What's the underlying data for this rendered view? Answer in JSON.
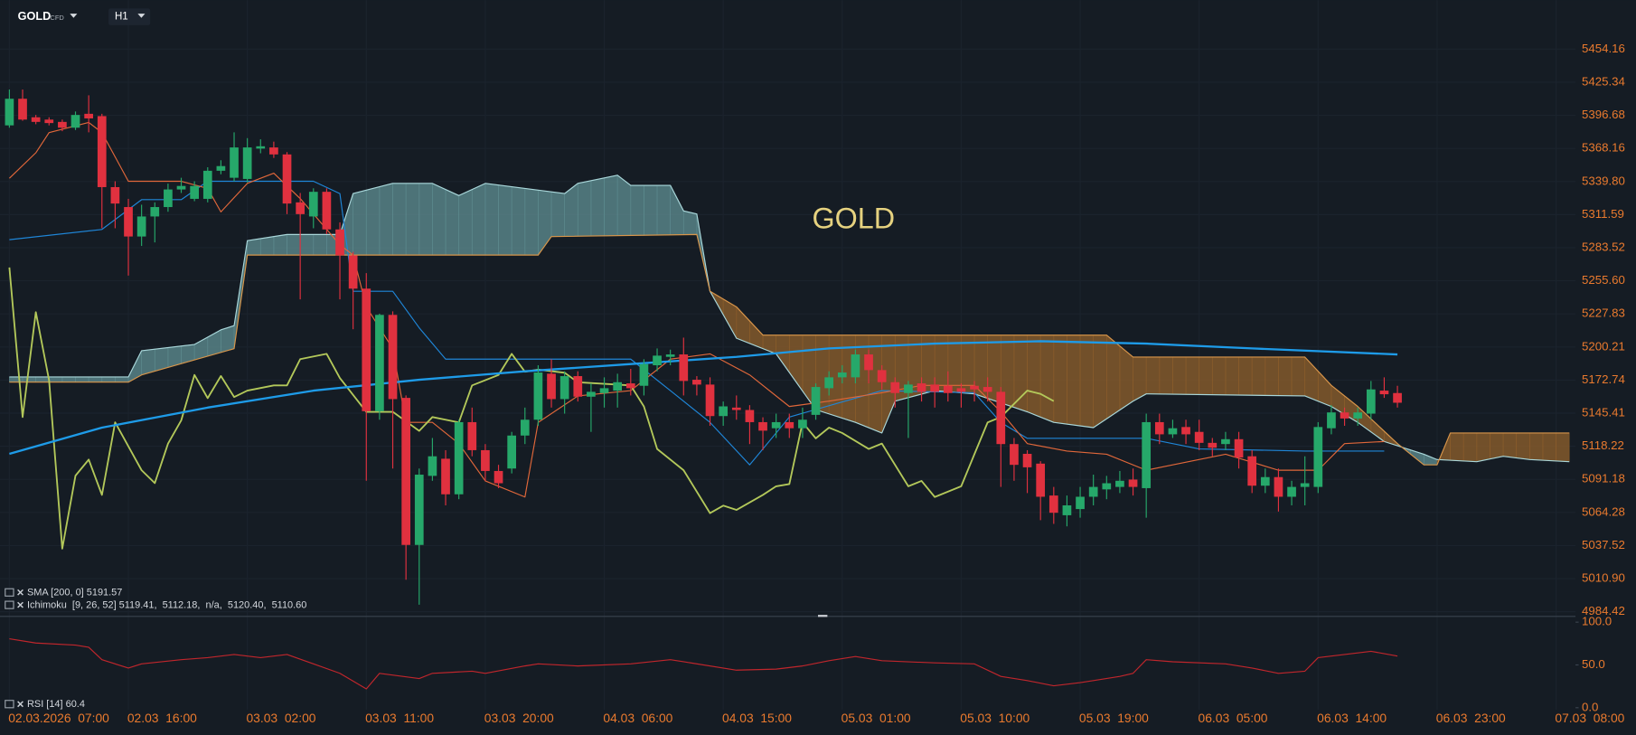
{
  "header": {
    "symbol": "GOLD",
    "symbol_type": "CFD",
    "timeframe": "H1"
  },
  "chart_data": {
    "type": "candlestick",
    "watermark": "GOLD",
    "categories": [
      "02.03.2026  07:00",
      null,
      null,
      null,
      null,
      null,
      null,
      null,
      null,
      "02.03  16:00",
      null,
      null,
      null,
      null,
      null,
      null,
      null,
      null,
      "03.03  02:00",
      null,
      null,
      null,
      null,
      null,
      null,
      null,
      null,
      "03.03  11:00",
      null,
      null,
      null,
      null,
      null,
      null,
      null,
      null,
      "03.03  20:00",
      null,
      null,
      null,
      null,
      null,
      null,
      null,
      null,
      "04.03  06:00",
      null,
      null,
      null,
      null,
      null,
      null,
      null,
      null,
      "04.03  15:00",
      null,
      null,
      null,
      null,
      null,
      null,
      null,
      null,
      "05.03  01:00",
      null,
      null,
      null,
      null,
      null,
      null,
      null,
      null,
      "05.03  10:00",
      null,
      null,
      null,
      null,
      null,
      null,
      null,
      null,
      "05.03  19:00",
      null,
      null,
      null,
      null,
      null,
      null,
      null,
      null,
      "06.03  05:00",
      null,
      null,
      null,
      null,
      null,
      null,
      null,
      null,
      "06.03  14:00",
      null,
      null,
      null,
      null,
      null,
      null,
      null,
      null,
      "06.03  23:00",
      null,
      null,
      null,
      null,
      null,
      null,
      null,
      null,
      "07.03  08:00",
      null
    ],
    "open": [
      5388,
      5411,
      5395,
      5393,
      5391,
      5386,
      5398,
      5396,
      5335,
      5318,
      5293,
      5310,
      5318,
      5333,
      5325,
      5325,
      5349,
      5343,
      5342,
      5368,
      5369,
      5363,
      5322,
      5310,
      5331,
      5299,
      5277,
      5249,
      5147,
      5227,
      5158,
      5038,
      5094,
      5108,
      5079,
      5138,
      5115,
      5098,
      5100,
      5127,
      5140,
      5178,
      5157,
      5176,
      5159,
      5162,
      5164,
      5170,
      5168,
      5185,
      5192,
      5194,
      5173,
      5169,
      5143,
      5150,
      5148,
      5138,
      5133,
      5138,
      5133,
      5144,
      5166,
      5175,
      5175,
      5194,
      5181,
      5171,
      5162,
      5170,
      5169,
      5168,
      5166,
      5168,
      5167,
      5163,
      5120,
      5112,
      5104,
      5078,
      5062,
      5067,
      5077,
      5083,
      5085,
      5091,
      5084,
      5138,
      5128,
      5134,
      5130,
      5121,
      5120,
      5124,
      5110,
      5086,
      5093,
      5077,
      5085,
      5085,
      5133,
      5146,
      5141,
      5145,
      5164,
      5162,
      null,
      null,
      null,
      null,
      null,
      null,
      null,
      null,
      null,
      null,
      null,
      null,
      null
    ],
    "high": [
      5419,
      5419,
      5397,
      5395,
      5393,
      5400,
      5414,
      5398,
      5340,
      5325,
      5320,
      5322,
      5338,
      5343,
      5340,
      5352,
      5358,
      5382,
      5377,
      5376,
      5374,
      5365,
      5330,
      5334,
      5334,
      5305,
      5280,
      5262,
      5228,
      5230,
      5160,
      5100,
      5125,
      5115,
      5140,
      5150,
      5120,
      5103,
      5130,
      5150,
      5185,
      5190,
      5180,
      5180,
      5170,
      5175,
      5178,
      5182,
      5190,
      5199,
      5198,
      5208,
      5176,
      5175,
      5155,
      5160,
      5152,
      5142,
      5145,
      5145,
      5150,
      5170,
      5180,
      5185,
      5198,
      5198,
      5185,
      5175,
      5172,
      5175,
      5175,
      5180,
      5170,
      5172,
      5175,
      5167,
      5125,
      5115,
      5106,
      5085,
      5078,
      5085,
      5095,
      5094,
      5098,
      5100,
      5145,
      5145,
      5140,
      5140,
      5140,
      5125,
      5130,
      5130,
      5115,
      5100,
      5100,
      5090,
      5110,
      5138,
      5152,
      5150,
      5150,
      5172,
      5175,
      5168,
      null,
      null,
      null,
      null,
      null,
      null,
      null,
      null,
      null,
      null,
      null,
      null,
      null
    ],
    "low": [
      5386,
      5392,
      5389,
      5388,
      5383,
      5384,
      5382,
      5300,
      5300,
      5260,
      5285,
      5288,
      5314,
      5330,
      5323,
      5322,
      5346,
      5340,
      5339,
      5364,
      5360,
      5312,
      5240,
      5300,
      5295,
      5240,
      5215,
      5090,
      5140,
      5100,
      5010,
      4990,
      5090,
      5070,
      5075,
      5110,
      5090,
      5084,
      5096,
      5120,
      5135,
      5150,
      5145,
      5155,
      5130,
      5150,
      5150,
      5160,
      5160,
      5180,
      5185,
      5160,
      5160,
      5135,
      5135,
      5140,
      5120,
      5115,
      5125,
      5125,
      5125,
      5140,
      5160,
      5170,
      5170,
      5170,
      5165,
      5150,
      5125,
      5155,
      5150,
      5155,
      5150,
      5155,
      5155,
      5085,
      5090,
      5080,
      5058,
      5055,
      5053,
      5060,
      5070,
      5075,
      5080,
      5078,
      5060,
      5120,
      5125,
      5120,
      5115,
      5110,
      5115,
      5100,
      5080,
      5080,
      5065,
      5070,
      5070,
      5080,
      5128,
      5135,
      5135,
      5140,
      5158,
      5150,
      null,
      null,
      null,
      null,
      null,
      null,
      null,
      null,
      null,
      null,
      null,
      null,
      null
    ],
    "close": [
      5411,
      5393,
      5391,
      5390,
      5386,
      5397,
      5394,
      5335,
      5321,
      5293,
      5310,
      5318,
      5333,
      5336,
      5336,
      5349,
      5353,
      5369,
      5369,
      5370,
      5363,
      5321,
      5312,
      5331,
      5299,
      5277,
      5249,
      5147,
      5227,
      5157,
      5038,
      5095,
      5110,
      5079,
      5138,
      5115,
      5098,
      5088,
      5127,
      5140,
      5179,
      5157,
      5176,
      5159,
      5163,
      5166,
      5171,
      5166,
      5186,
      5193,
      5194,
      5172,
      5169,
      5143,
      5151,
      5148,
      5138,
      5131,
      5138,
      5133,
      5140,
      5167,
      5175,
      5179,
      5194,
      5181,
      5171,
      5162,
      5169,
      5163,
      5163,
      5162,
      5163,
      5165,
      5163,
      5120,
      5103,
      5101,
      5077,
      5064,
      5070,
      5077,
      5085,
      5088,
      5090,
      5085,
      5138,
      5128,
      5133,
      5128,
      5121,
      5117,
      5124,
      5109,
      5086,
      5093,
      5077,
      5085,
      5088,
      5134,
      5146,
      5141,
      5146,
      5165,
      5161,
      5154,
      null,
      null,
      null,
      null,
      null,
      null,
      null,
      null,
      null,
      null,
      null,
      null,
      null
    ],
    "up_color": "#26a86a",
    "down_color": "#e0313f",
    "log_scale": true,
    "grid": true,
    "ylim": [
      4981.1,
      5497.1
    ],
    "yticks": [
      5454.16,
      5425.34,
      5396.68,
      5368.16,
      {
        "value": 5339.8,
        "label": "5339.80"
      },
      5311.59,
      5283.52,
      {
        "value": 5255.6,
        "label": "5255.60"
      },
      5227.83,
      5200.21,
      5172.74,
      5145.41,
      5118.22,
      5091.18,
      5064.28,
      5037.52,
      {
        "value": 5010.9,
        "label": "5010.90"
      },
      4984.42
    ],
    "indicators": {
      "sma": {
        "label": "SMA [200, 0] 5191.57",
        "color": "#1e9be8",
        "x": [
          0,
          7,
          15,
          23,
          31,
          39,
          47,
          55,
          62,
          70,
          78,
          86,
          94,
          105
        ],
        "values": [
          5112,
          5133.5,
          5150,
          5164,
          5173,
          5180,
          5186,
          5192,
          5199,
          5203,
          5205,
          5203,
          5199,
          5194
        ]
      },
      "ichimoku": {
        "label": "Ichimoku  [9, 26, 52] 5119.41,  5112.18,  n/a,  5120.40,  5110.60",
        "bull_fill": "#5d8c90",
        "bear_fill": "#8d5f2c",
        "tenkan": {
          "color": "#e0673a",
          "x": [
            0,
            2,
            3,
            6,
            7,
            9,
            13,
            15,
            16,
            18,
            20,
            22,
            25,
            26,
            27,
            29,
            30,
            32,
            34,
            36,
            39,
            40,
            43,
            47,
            50,
            53,
            56,
            59,
            62,
            66,
            69,
            73,
            75,
            77,
            80,
            83,
            86,
            88,
            92,
            96,
            99,
            101,
            104
          ],
          "values": [
            5342.6,
            5364.4,
            5381.8,
            5390.5,
            5381.8,
            5340.0,
            5340.0,
            5333.9,
            5313.9,
            5338.2,
            5346.9,
            5325.2,
            5286.0,
            5277.3,
            5233.7,
            5198.8,
            5137.8,
            5137.8,
            5120.4,
            5089.9,
            5076.8,
            5137.8,
            5159.6,
            5164.0,
            5190.1,
            5194.5,
            5177.0,
            5150.9,
            5155.3,
            5162.2,
            5168.3,
            5168.3,
            5146.5,
            5120.4,
            5114.3,
            5111.7,
            5098.6,
            5103.0,
            5111.7,
            5098.6,
            5098.6,
            5120.4,
            5122.1
          ]
        },
        "kijun": {
          "color": "#1f86d8",
          "x": [
            0,
            7,
            10,
            13,
            15,
            23,
            25,
            26,
            29,
            31,
            33,
            47,
            50,
            53,
            56,
            59,
            66,
            73,
            75,
            77,
            86,
            90,
            98,
            104
          ],
          "values": [
            5290.3,
            5299.0,
            5324.3,
            5324.3,
            5340.0,
            5340.0,
            5329.5,
            5246.8,
            5246.8,
            5216.2,
            5190.1,
            5190.1,
            5164.0,
            5137.8,
            5103.0,
            5142.2,
            5164.0,
            5162.2,
            5137.8,
            5124.7,
            5124.7,
            5116.0,
            5114.3,
            5114.3
          ]
        },
        "chikou": {
          "color": "#b3c85a",
          "x": [
            0,
            1,
            2,
            3,
            4,
            5,
            6,
            7,
            8,
            10,
            11,
            12,
            13,
            14,
            15,
            16,
            17,
            18,
            20,
            21,
            22,
            24,
            25,
            27,
            29,
            31,
            32,
            34,
            35,
            37,
            38,
            39,
            40,
            42,
            43,
            47,
            48,
            49,
            51,
            53,
            54,
            55,
            57,
            58,
            59,
            60,
            61,
            62,
            63,
            65,
            66,
            68,
            69,
            70,
            72,
            73,
            74,
            75,
            77,
            78,
            79
          ],
          "values": [
            5266.8,
            5142.2,
            5229.3,
            5172.7,
            5035.0,
            5094.2,
            5107.3,
            5078.5,
            5137.8,
            5098.6,
            5088.1,
            5120.4,
            5139.5,
            5177.0,
            5157.8,
            5176.1,
            5158.7,
            5164.0,
            5168.3,
            5168.3,
            5190.1,
            5194.5,
            5174.4,
            5146.5,
            5146.5,
            5130.8,
            5142.2,
            5137.8,
            5168.3,
            5177.0,
            5194.5,
            5179.6,
            5181.4,
            5178.8,
            5170.9,
            5168.3,
            5150.9,
            5116.0,
            5098.6,
            5063.7,
            5069.8,
            5066.3,
            5078.5,
            5085.5,
            5087.3,
            5137.8,
            5124.7,
            5133.5,
            5129.1,
            5116.0,
            5120.4,
            5085.5,
            5089.9,
            5076.8,
            5085.5,
            5111.7,
            5137.8,
            5142.2,
            5164.0,
            5161.3,
            5155.3
          ]
        },
        "span_a": {
          "color": "#a9d7da",
          "x": [
            0,
            9,
            10,
            14,
            16,
            17,
            18,
            21,
            25,
            26,
            29,
            32,
            34,
            36,
            39,
            42,
            43,
            46,
            47,
            50,
            51,
            52,
            53,
            55,
            58,
            61,
            64,
            66,
            67,
            70,
            73,
            77,
            79,
            82,
            85,
            86,
            98,
            100,
            102,
            104,
            107,
            108,
            111,
            113,
            115,
            118
          ],
          "values": [
            5175.3,
            5175.3,
            5197.1,
            5202.3,
            5214.5,
            5218.0,
            5289.5,
            5294.7,
            5294.7,
            5329.5,
            5338.2,
            5338.2,
            5327.8,
            5338.2,
            5333.9,
            5329.5,
            5338.2,
            5345.2,
            5336.5,
            5336.5,
            5314.7,
            5312.1,
            5246.8,
            5207.5,
            5194.5,
            5148.3,
            5137.8,
            5129.1,
            5155.3,
            5164.0,
            5161.3,
            5146.5,
            5137.8,
            5133.5,
            5155.3,
            5161.3,
            5159.6,
            5150.9,
            5137.8,
            5122.1,
            5111.7,
            5107.3,
            5105.6,
            5110.0,
            5107.3,
            5105.6
          ]
        },
        "span_b": {
          "color": "#d8954a",
          "x": [
            0,
            9,
            10,
            17,
            18,
            40,
            41,
            52,
            53,
            55,
            57,
            83,
            85,
            98,
            100,
            102,
            105,
            107,
            108,
            109,
            118
          ],
          "values": [
            5171.0,
            5171.0,
            5177.0,
            5198.8,
            5277.3,
            5277.3,
            5292.9,
            5294.7,
            5246.8,
            5233.7,
            5210.1,
            5210.1,
            5191.8,
            5191.8,
            5168.3,
            5150.9,
            5120.4,
            5103.0,
            5103.0,
            5129.1,
            5129.1
          ]
        }
      },
      "rsi": {
        "label": "RSI [14] 60.4",
        "color": "#c0262c",
        "ylim": [
          0,
          100
        ],
        "yticks": [
          {
            "value": 100,
            "label": "100.0"
          },
          {
            "value": 50,
            "label": "50.0"
          },
          {
            "value": 0,
            "label": "0.0"
          }
        ],
        "x": [
          0,
          2,
          5,
          6,
          7,
          9,
          10,
          13,
          15,
          17,
          19,
          21,
          23,
          25,
          27,
          28,
          31,
          32,
          35,
          36,
          39,
          40,
          43,
          47,
          50,
          51,
          55,
          58,
          60,
          62,
          64,
          66,
          70,
          73,
          75,
          77,
          79,
          81,
          82,
          84,
          85,
          86,
          88,
          92,
          94,
          96,
          98,
          99,
          101,
          103,
          105
        ],
        "values": [
          80.5,
          75.6,
          73.2,
          70.7,
          56.1,
          46.3,
          51.2,
          56.1,
          58.5,
          62.2,
          58.5,
          62.2,
          51.2,
          40.2,
          22.0,
          40.2,
          34.1,
          40.2,
          42.7,
          40.2,
          48.8,
          51.2,
          48.8,
          51.2,
          56.1,
          53.7,
          43.9,
          45.1,
          48.8,
          54.9,
          59.8,
          54.9,
          52.4,
          51.2,
          36.6,
          31.7,
          25.6,
          29.3,
          31.7,
          36.6,
          40.2,
          56.1,
          53.7,
          51.2,
          46.3,
          40.2,
          42.7,
          58.5,
          62.2,
          65.9,
          60.4
        ]
      }
    }
  }
}
